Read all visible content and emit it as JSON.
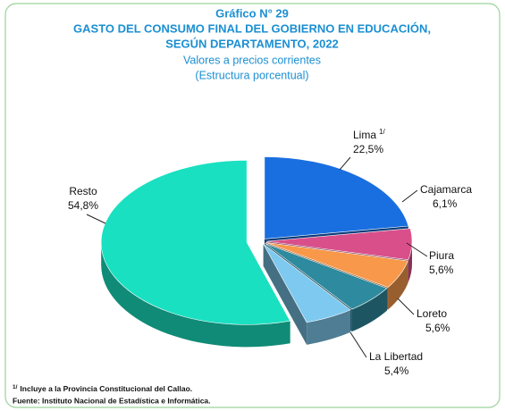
{
  "chart_data": {
    "type": "pie3d",
    "title": [
      "Gráfico N° 29",
      "GASTO DEL CONSUMO FINAL DEL GOBIERNO EN EDUCACIÓN,",
      "SEGÚN DEPARTAMENTO, 2022"
    ],
    "subtitle": [
      "Valores a precios corrientes",
      "(Estructura porcentual)"
    ],
    "categories": [
      "Lima",
      "Cajamarca",
      "Piura",
      "Loreto",
      "La Libertad",
      "Resto"
    ],
    "values": [
      22.5,
      6.1,
      5.6,
      5.6,
      5.4,
      54.8
    ],
    "value_labels": [
      "22,5%",
      "6,1%",
      "5,6%",
      "5,6%",
      "5,4%",
      "54,8%"
    ],
    "colors": [
      "#1a6fe0",
      "#d94f8a",
      "#f7984a",
      "#2e8a9e",
      "#7ec9ef",
      "#19e0c0"
    ],
    "footnote": {
      "marker": "1/",
      "text": "Incluye a  la Provincia Constitucional del Callao."
    },
    "source": "Fuente: Instituto Nacional de Estadística e Informática."
  }
}
